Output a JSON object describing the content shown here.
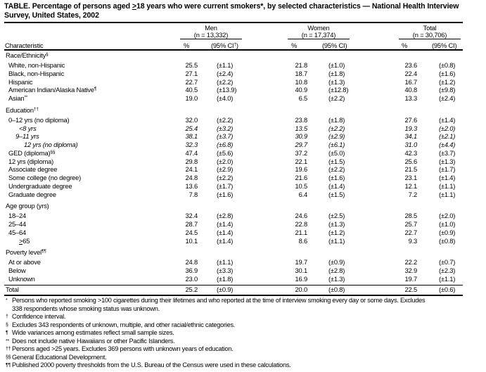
{
  "title": {
    "prefix": "TABLE. Percentage of persons aged ",
    "ge": ">",
    "rest": "18 years who were current smokers*, by selected characteristics — National Health Interview Survey, United States, 2002"
  },
  "groups": [
    {
      "name": "Men",
      "n": "(n = 13,332)",
      "pct": "%",
      "ci": "(95% CI",
      "ci_mark": "†",
      "ci_end": ")"
    },
    {
      "name": "Women",
      "n": "(n = 17,374)",
      "pct": "%",
      "ci": "(95% CI)",
      "ci_mark": "",
      "ci_end": ""
    },
    {
      "name": "Total",
      "n": "(n = 30,706)",
      "pct": "%",
      "ci": "(95% CI)",
      "ci_mark": "",
      "ci_end": ""
    }
  ],
  "characteristic_header": "Characteristic",
  "rows": [
    {
      "type": "section",
      "label": "Race/Ethnicity",
      "mark": "§"
    },
    {
      "label": "White, non-Hispanic",
      "indent": 1,
      "values": [
        "25.5",
        "(±1.1)",
        "21.8",
        "(±1.0)",
        "23.6",
        "(±0.8)"
      ]
    },
    {
      "label": "Black, non-Hispanic",
      "indent": 1,
      "values": [
        "27.1",
        "(±2.4)",
        "18.7",
        "(±1.8)",
        "22.4",
        "(±1.6)"
      ]
    },
    {
      "label": "Hispanic",
      "indent": 1,
      "values": [
        "22.7",
        "(±2.2)",
        "10.8",
        "(±1.3)",
        "16.7",
        "(±1.2)"
      ]
    },
    {
      "label": "American Indian/Alaska Native",
      "mark": "¶",
      "indent": 1,
      "values": [
        "40.5",
        "(±13.9)",
        "40.9",
        "(±12.8)",
        "40.8",
        "(±9.8)"
      ]
    },
    {
      "label": "Asian",
      "mark": "**",
      "indent": 1,
      "values": [
        "19.0",
        "(±4.0)",
        "6.5",
        "(±2.2)",
        "13.3",
        "(±2.4)"
      ]
    },
    {
      "type": "section",
      "label": "Education",
      "mark": "††"
    },
    {
      "label": "0–12 yrs (no diploma)",
      "indent": 1,
      "values": [
        "32.0",
        "(±2.2)",
        "23.8",
        "(±1.8)",
        "27.6",
        "(±1.4)"
      ]
    },
    {
      "label": "<8 yrs",
      "indent": 3,
      "italic": true,
      "values": [
        "25.4",
        "(±3.2)",
        "13.5",
        "(±2.2)",
        "19.3",
        "(±2.0)"
      ]
    },
    {
      "label": "9–11 yrs",
      "indent": 2,
      "italic": true,
      "values": [
        "38.1",
        "(±3.7)",
        "30.9",
        "(±2.9)",
        "34.1",
        "(±2.1)"
      ]
    },
    {
      "label": "12 yrs (no diploma)",
      "indent": 4,
      "italic": true,
      "values": [
        "32.3",
        "(±6.8)",
        "29.7",
        "(±6.1)",
        "31.0",
        "(±4.4)"
      ]
    },
    {
      "label": "GED (diploma)",
      "mark": "§§",
      "indent": 1,
      "values": [
        "47.4",
        "(±5.6)",
        "37.2",
        "(±5.0)",
        "42.3",
        "(±3.7)"
      ]
    },
    {
      "label": "12 yrs (diploma)",
      "indent": 1,
      "values": [
        "29.8",
        "(±2.0)",
        "22.1",
        "(±1.5)",
        "25.6",
        "(±1.3)"
      ]
    },
    {
      "label": "Associate degree",
      "indent": 1,
      "values": [
        "24.1",
        "(±2.9)",
        "19.6",
        "(±2.2)",
        "21.5",
        "(±1.7)"
      ]
    },
    {
      "label": "Some college (no degree)",
      "indent": 1,
      "values": [
        "24.8",
        "(±2.2)",
        "21.6",
        "(±1.6)",
        "23.1",
        "(±1.4)"
      ]
    },
    {
      "label": "Undergraduate degree",
      "indent": 1,
      "values": [
        "13.6",
        "(±1.7)",
        "10.5",
        "(±1.4)",
        "12.1",
        "(±1.1)"
      ]
    },
    {
      "label": "Graduate degree",
      "indent": 1,
      "values": [
        "7.8",
        "(±1.6)",
        "6.4",
        "(±1.5)",
        "7.2",
        "(±1.1)"
      ]
    },
    {
      "type": "section",
      "label": "Age group (yrs)",
      "mark": ""
    },
    {
      "label": "18–24",
      "indent": 1,
      "values": [
        "32.4",
        "(±2.8)",
        "24.6",
        "(±2.5)",
        "28.5",
        "(±2.0)"
      ]
    },
    {
      "label": "25–44",
      "indent": 1,
      "values": [
        "28.7",
        "(±1.4)",
        "22.8",
        "(±1.3)",
        "25.7",
        "(±1.0)"
      ]
    },
    {
      "label": "45–64",
      "indent": 1,
      "values": [
        "24.5",
        "(±1.4)",
        "21.1",
        "(±1.2)",
        "22.7",
        "(±0.9)"
      ]
    },
    {
      "label": ">65",
      "underline_first": true,
      "indent": 3,
      "values": [
        "10.1",
        "(±1.4)",
        "8.6",
        "(±1.1)",
        "9.3",
        "(±0.8)"
      ]
    },
    {
      "type": "section",
      "label": "Poverty level",
      "mark": "¶¶"
    },
    {
      "label": "At or above",
      "indent": 1,
      "values": [
        "24.8",
        "(±1.1)",
        "19.7",
        "(±0.9)",
        "22.2",
        "(±0.7)"
      ]
    },
    {
      "label": "Below",
      "indent": 1,
      "values": [
        "36.9",
        "(±3.3)",
        "30.1",
        "(±2.8)",
        "32.9",
        "(±2.3)"
      ]
    },
    {
      "label": "Unknown",
      "indent": 1,
      "values": [
        "23.0",
        "(±1.8)",
        "16.9",
        "(±1.3)",
        "19.7",
        "(±1.1)"
      ]
    },
    {
      "type": "total",
      "label": "Total",
      "indent": 0,
      "values": [
        "25.2",
        "(±0.9)",
        "20.0",
        "(±0.8)",
        "22.5",
        "(±0.6)"
      ]
    }
  ],
  "footnotes": [
    {
      "mark": "*",
      "text": "Persons who reported smoking >100 cigarettes during their lifetimes and who reported at the time of interview smoking every day or some days. Excludes"
    },
    {
      "mark": "",
      "text": "338 respondents whose smoking status was unknown."
    },
    {
      "mark": "†",
      "text": "Confidence interval."
    },
    {
      "mark": "§",
      "text": "Excludes 343 respondents of unknown, multiple, and other racial/ethnic categories."
    },
    {
      "mark": "¶",
      "text": "Wide variances among estimates reflect small sample sizes."
    },
    {
      "mark": "**",
      "text": "Does not include native Hawaiians or other Pacific Islanders."
    },
    {
      "mark": "††",
      "text": "Persons aged >25 years. Excludes 369 persons with unknown years of education."
    },
    {
      "mark": "§§",
      "text": "General Educational Development."
    },
    {
      "mark": "¶¶",
      "text": "Published 2000 poverty thresholds from the U.S. Bureau of the Census were used in these calculations."
    }
  ]
}
